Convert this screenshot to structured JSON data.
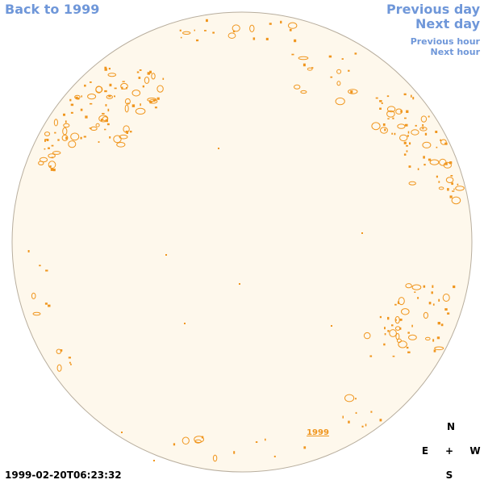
{
  "nav": {
    "back": "Back to 1999",
    "previous_day": "Previous day",
    "next_day": "Next day",
    "previous_hour": "Previous hour",
    "next_hour": "Next hour"
  },
  "disk": {
    "year_label": "1999",
    "fill_color": "#fef8ec",
    "edge_color": "#b8ae9e",
    "feature_color": "#f0961e"
  },
  "timestamp": "1999-02-20T06:23:32",
  "compass": {
    "north": "N",
    "east": "E",
    "center": "+",
    "west": "W",
    "south": "S"
  },
  "colors": {
    "link": "#6f97d9"
  }
}
